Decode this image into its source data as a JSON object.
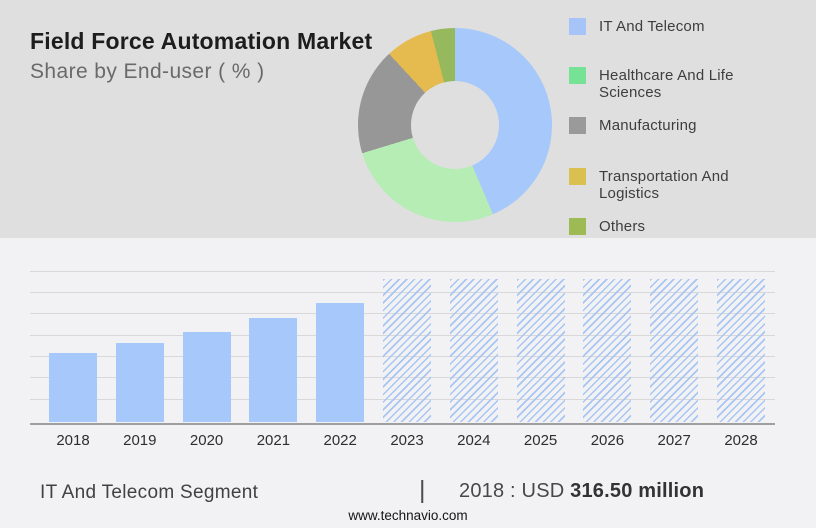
{
  "header": {
    "title": "Field Force Automation Market",
    "subtitle": "Share by End-user ( % )"
  },
  "donut": {
    "slices": [
      {
        "label": "IT And Telecom",
        "value_pct": 43.6,
        "color": "#a6c8fa"
      },
      {
        "label": "Healthcare And Life Sciences",
        "value_pct": 26.7,
        "color": "#b5edb5"
      },
      {
        "label": "Manufacturing",
        "value_pct": 17.8,
        "color": "#979797"
      },
      {
        "label": "Transportation And Logistics",
        "value_pct": 7.9,
        "color": "#e5ba4e"
      },
      {
        "label": "Others",
        "value_pct": 4.0,
        "color": "#97b95e"
      }
    ]
  },
  "legend": {
    "items": [
      {
        "label": "IT And Telecom",
        "color": "#a6c4f7"
      },
      {
        "label": "Healthcare And Life Sciences",
        "color": "#76e295"
      },
      {
        "label": "Manufacturing",
        "color": "#9a9a9a"
      },
      {
        "label": "Transportation And Logistics",
        "color": "#d9c050"
      },
      {
        "label": "Others",
        "color": "#9eba55"
      }
    ]
  },
  "chart_data": [
    {
      "type": "pie",
      "donut": true,
      "title": "Field Force Automation Market — Share by End-user ( % )",
      "labels": [
        "IT And Telecom",
        "Healthcare And Life Sciences",
        "Manufacturing",
        "Transportation And Logistics",
        "Others"
      ],
      "values": [
        43.6,
        26.7,
        17.8,
        7.9,
        4.0
      ],
      "values_estimated": true,
      "legend_position": "right"
    },
    {
      "type": "bar",
      "categories": [
        "2018",
        "2019",
        "2020",
        "2021",
        "2022",
        "2023",
        "2024",
        "2025",
        "2026",
        "2027",
        "2028"
      ],
      "values": [
        316.5,
        362,
        413,
        477,
        545,
        654,
        654,
        654,
        654,
        654,
        654
      ],
      "solid_years": [
        "2018",
        "2019",
        "2020",
        "2021",
        "2022"
      ],
      "forecast_years_hatched": [
        "2023",
        "2024",
        "2025",
        "2026",
        "2027",
        "2028"
      ],
      "known_value": {
        "year": "2018",
        "value": "USD 316.50 million"
      },
      "note": "Only 2018 value labeled; other values estimated from bar heights; forecast bars drawn at uniform height with hatch pattern",
      "bar_color_solid": "#a6c8fa",
      "bar_color_hatch": "#a9c6f3",
      "grid": true,
      "xlabel": "",
      "ylabel": ""
    }
  ],
  "footer": {
    "segment_label": "IT And Telecom Segment",
    "separator": "|",
    "value_prefix": "2018 : USD ",
    "value_amount": "316.50 million",
    "website": "www.technavio.com"
  }
}
